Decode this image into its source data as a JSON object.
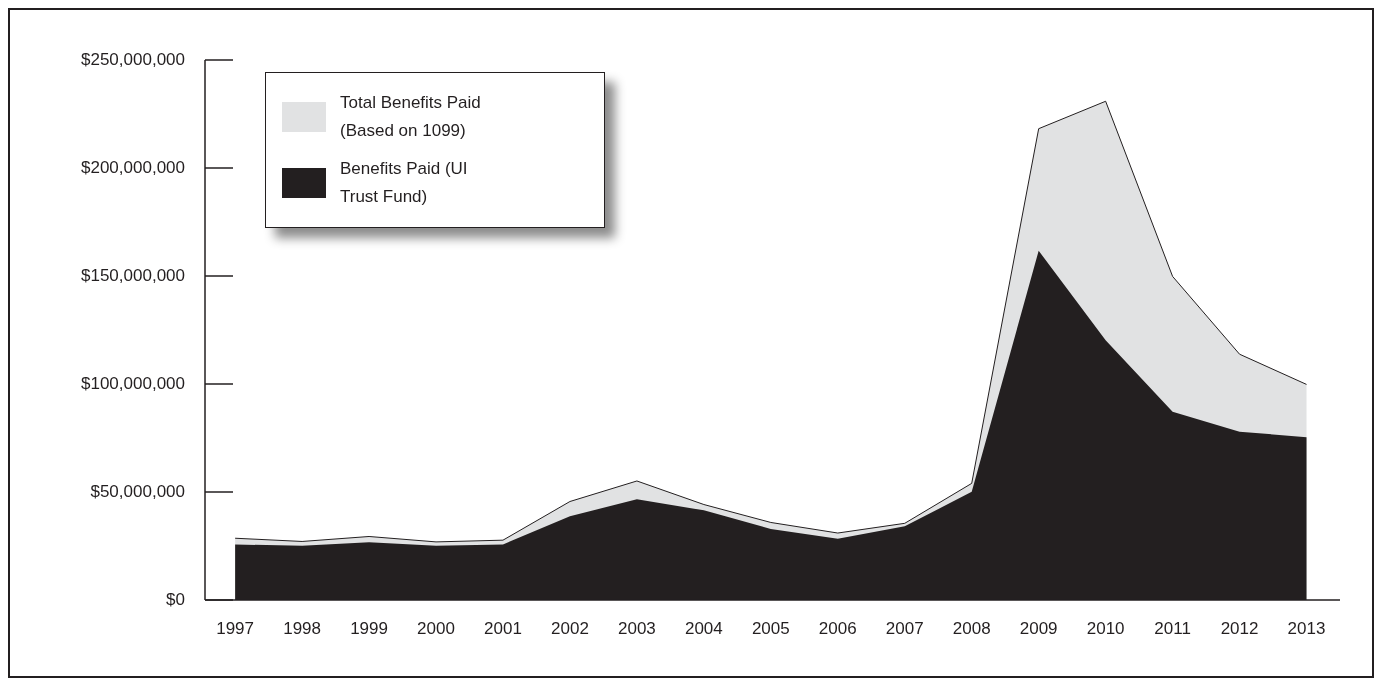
{
  "chart_data": {
    "type": "area",
    "categories": [
      "1997",
      "1998",
      "1999",
      "2000",
      "2001",
      "2002",
      "2003",
      "2004",
      "2005",
      "2006",
      "2007",
      "2008",
      "2009",
      "2010",
      "2011",
      "2012",
      "2013"
    ],
    "series": [
      {
        "name": "Total Benefits Paid (Based on 1099)",
        "color": "#e1e2e3",
        "values": [
          28600000,
          27100000,
          29400000,
          26900000,
          27700000,
          45600000,
          55100000,
          44200000,
          35900000,
          31000000,
          35500000,
          54000000,
          218200000,
          230900000,
          149800000,
          113800000,
          99800000
        ]
      },
      {
        "name": "Benefits Paid (UI Trust Fund)",
        "color": "#231f20",
        "values": [
          25700000,
          25100000,
          26700000,
          25100000,
          25700000,
          38800000,
          46600000,
          41500000,
          32900000,
          28300000,
          34100000,
          50100000,
          161700000,
          120200000,
          87100000,
          77900000,
          75400000
        ]
      }
    ],
    "ylim": [
      0,
      250000000
    ],
    "yticks": [
      {
        "value": 0,
        "label": "$0"
      },
      {
        "value": 50000000,
        "label": "$50,000,000"
      },
      {
        "value": 100000000,
        "label": "$100,000,000"
      },
      {
        "value": 150000000,
        "label": "$150,000,000"
      },
      {
        "value": 200000000,
        "label": "$200,000,000"
      },
      {
        "value": 250000000,
        "label": "$250,000,000"
      }
    ],
    "grid": false,
    "legend": "top left"
  }
}
